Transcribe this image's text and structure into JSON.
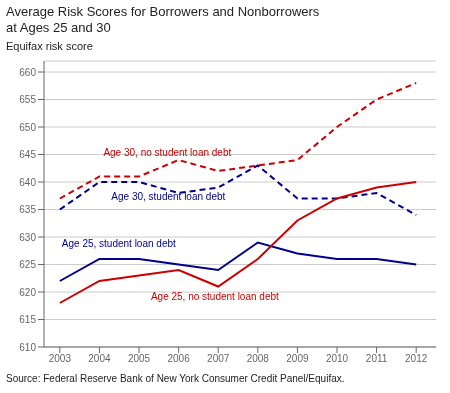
{
  "chart_data": {
    "type": "line",
    "title": "Average Risk Scores for Borrowers and Nonborrowers",
    "subtitle": "at Ages 25 and 30",
    "y_label": "Equifax risk score",
    "source": "Source: Federal Reserve Bank of New York Consumer Credit Panel/Equifax.",
    "x": [
      2003,
      2004,
      2005,
      2006,
      2007,
      2008,
      2009,
      2010,
      2011,
      2012
    ],
    "series": [
      {
        "name": "Age 30, no student loan debt",
        "color": "#cc0000",
        "line_style": "dashed",
        "values": [
          637,
          641,
          641,
          644,
          642,
          643,
          644,
          650,
          655,
          658
        ]
      },
      {
        "name": "Age 30, student loan debt",
        "color": "#00008b",
        "line_style": "dashed",
        "values": [
          635,
          640,
          640,
          638,
          639,
          643,
          637,
          637,
          638,
          634
        ]
      },
      {
        "name": "Age 25, student loan debt",
        "color": "#00008b",
        "line_style": "solid",
        "values": [
          622,
          626,
          626,
          625,
          624,
          629,
          627,
          626,
          626,
          625
        ]
      },
      {
        "name": "Age 25, no student loan debt",
        "color": "#cc0000",
        "line_style": "solid",
        "values": [
          618,
          622,
          623,
          624,
          621,
          626,
          633,
          637,
          639,
          640
        ]
      }
    ],
    "annotations": [
      {
        "text": "Age 30, no student loan debt",
        "x": 2004.1,
        "y": 644.8,
        "color": "#cc0000"
      },
      {
        "text": "Age 30, student loan debt",
        "x": 2004.3,
        "y": 636.8,
        "color": "#00008b"
      },
      {
        "text": "Age 25, student loan debt",
        "x": 2003.05,
        "y": 628.2,
        "color": "#00008b"
      },
      {
        "text": "Age 25, no student loan debt",
        "x": 2005.3,
        "y": 618.5,
        "color": "#cc0000"
      }
    ],
    "xlim": [
      2002.6,
      2012.5
    ],
    "xticks": [
      2003,
      2004,
      2005,
      2006,
      2007,
      2008,
      2009,
      2010,
      2011,
      2012
    ],
    "ylim": [
      610,
      662
    ],
    "yticks": [
      610,
      615,
      620,
      625,
      630,
      635,
      640,
      645,
      650,
      655,
      660
    ],
    "grid": true
  }
}
